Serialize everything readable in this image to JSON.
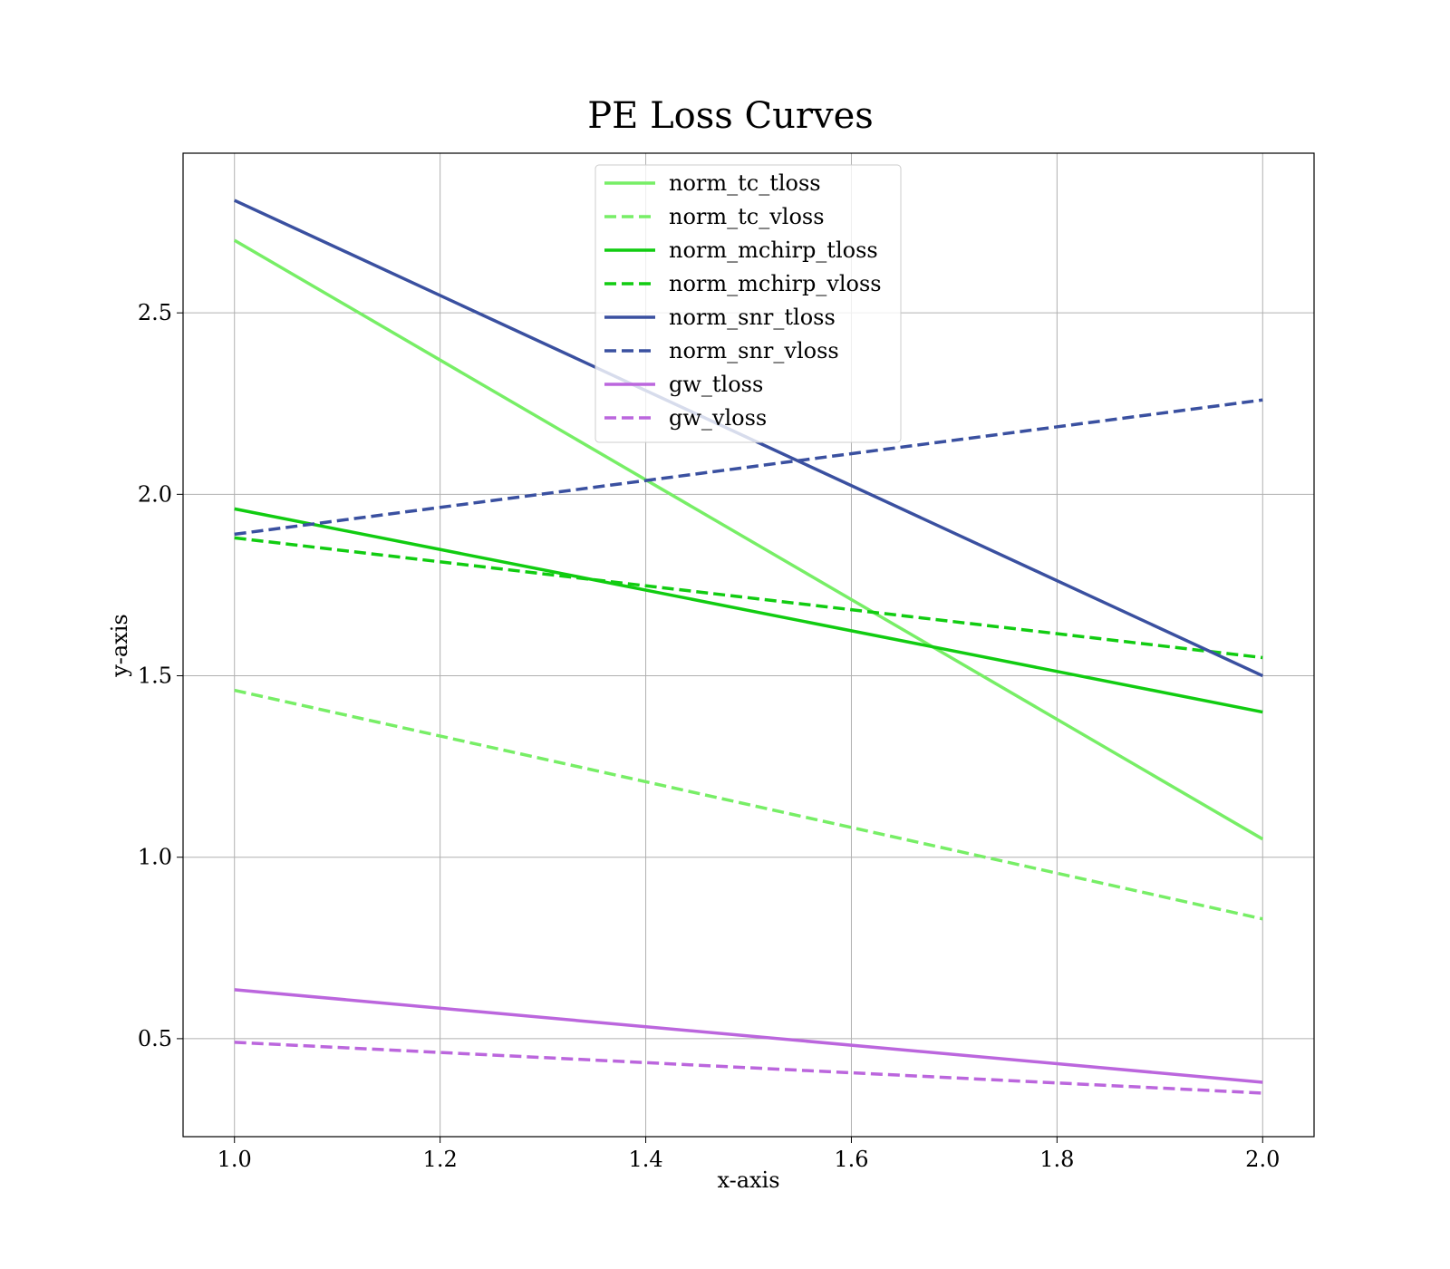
{
  "chart_data": {
    "type": "line",
    "title": "PE Loss Curves",
    "xlabel": "x-axis",
    "ylabel": "y-axis",
    "xlim": [
      0.95,
      2.05
    ],
    "ylim": [
      0.23,
      2.94
    ],
    "xticks": [
      1.0,
      1.2,
      1.4,
      1.6,
      1.8,
      2.0
    ],
    "xtick_labels": [
      "1.0",
      "1.2",
      "1.4",
      "1.6",
      "1.8",
      "2.0"
    ],
    "yticks": [
      0.5,
      1.0,
      1.5,
      2.0,
      2.5
    ],
    "ytick_labels": [
      "0.5",
      "1.0",
      "1.5",
      "2.0",
      "2.5"
    ],
    "grid": true,
    "legend_position": "top-center",
    "series": [
      {
        "name": "norm_tc_tloss",
        "x": [
          1.0,
          2.0
        ],
        "values": [
          2.7,
          1.05
        ],
        "color": "#77ee66",
        "style": "solid"
      },
      {
        "name": "norm_tc_vloss",
        "x": [
          1.0,
          2.0
        ],
        "values": [
          1.46,
          0.83
        ],
        "color": "#77ee66",
        "style": "dashed"
      },
      {
        "name": "norm_mchirp_tloss",
        "x": [
          1.0,
          2.0
        ],
        "values": [
          1.96,
          1.4
        ],
        "color": "#11cc11",
        "style": "solid"
      },
      {
        "name": "norm_mchirp_vloss",
        "x": [
          1.0,
          2.0
        ],
        "values": [
          1.88,
          1.55
        ],
        "color": "#11cc11",
        "style": "dashed"
      },
      {
        "name": "norm_snr_tloss",
        "x": [
          1.0,
          2.0
        ],
        "values": [
          2.81,
          1.5
        ],
        "color": "#3a50a0",
        "style": "solid"
      },
      {
        "name": "norm_snr_vloss",
        "x": [
          1.0,
          2.0
        ],
        "values": [
          1.89,
          2.26
        ],
        "color": "#3a50a0",
        "style": "dashed"
      },
      {
        "name": "gw_tloss",
        "x": [
          1.0,
          2.0
        ],
        "values": [
          0.635,
          0.38
        ],
        "color": "#bb66dd",
        "style": "solid"
      },
      {
        "name": "gw_vloss",
        "x": [
          1.0,
          2.0
        ],
        "values": [
          0.49,
          0.35
        ],
        "color": "#bb66dd",
        "style": "dashed"
      }
    ]
  }
}
